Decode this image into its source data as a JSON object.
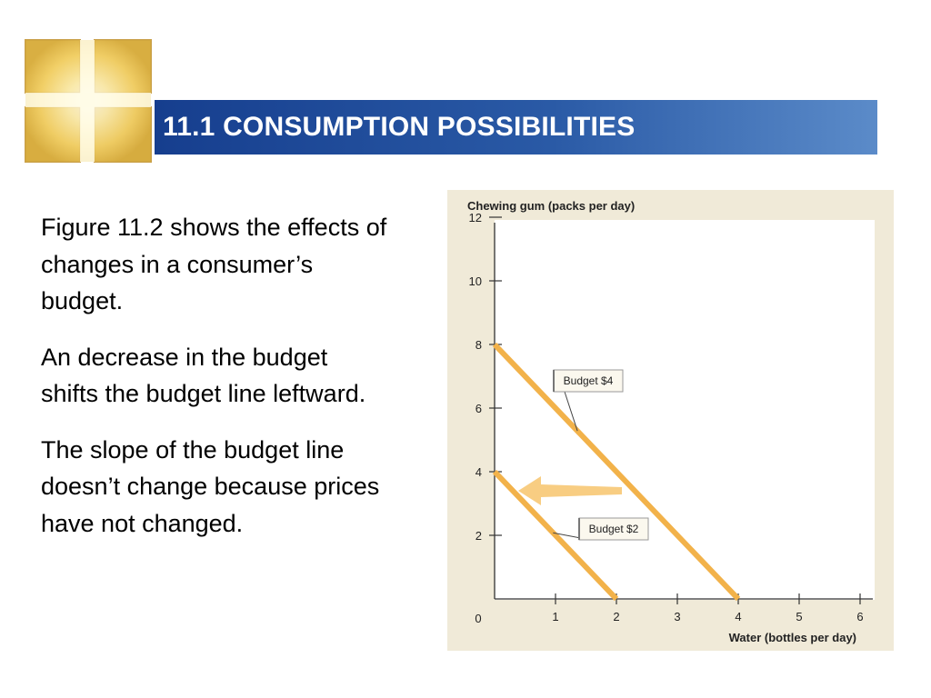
{
  "slide": {
    "title": "11.1 CONSUMPTION POSSIBILITIES",
    "paragraphs": [
      "Figure 11.2 shows the effects of changes in a consumer’s budget.",
      "An decrease in the budget shifts the budget line leftward.",
      "The slope of the budget line doesn’t change because prices have not changed."
    ]
  },
  "colors": {
    "title_bar": "#1f4e9c",
    "budget_line": "#f2b24a",
    "chart_background": "#f0ead8",
    "plot_background": "#ffffff"
  },
  "chart_data": {
    "type": "line",
    "title": "",
    "xlabel": "Water (bottles per day)",
    "ylabel": "Chewing gum (packs per day)",
    "xlim": [
      0,
      6
    ],
    "ylim": [
      0,
      12
    ],
    "x_ticks": [
      0,
      1,
      2,
      3,
      4,
      5,
      6
    ],
    "y_ticks": [
      2,
      4,
      6,
      8,
      10,
      12
    ],
    "origin_label": "0",
    "grid": false,
    "series": [
      {
        "name": "Budget $4",
        "x": [
          0,
          4
        ],
        "y": [
          8,
          0
        ]
      },
      {
        "name": "Budget $2",
        "x": [
          0,
          2
        ],
        "y": [
          4,
          0
        ]
      }
    ],
    "annotations": [
      {
        "type": "arrow",
        "direction": "left",
        "meaning": "budget line shifts leftward"
      }
    ]
  }
}
